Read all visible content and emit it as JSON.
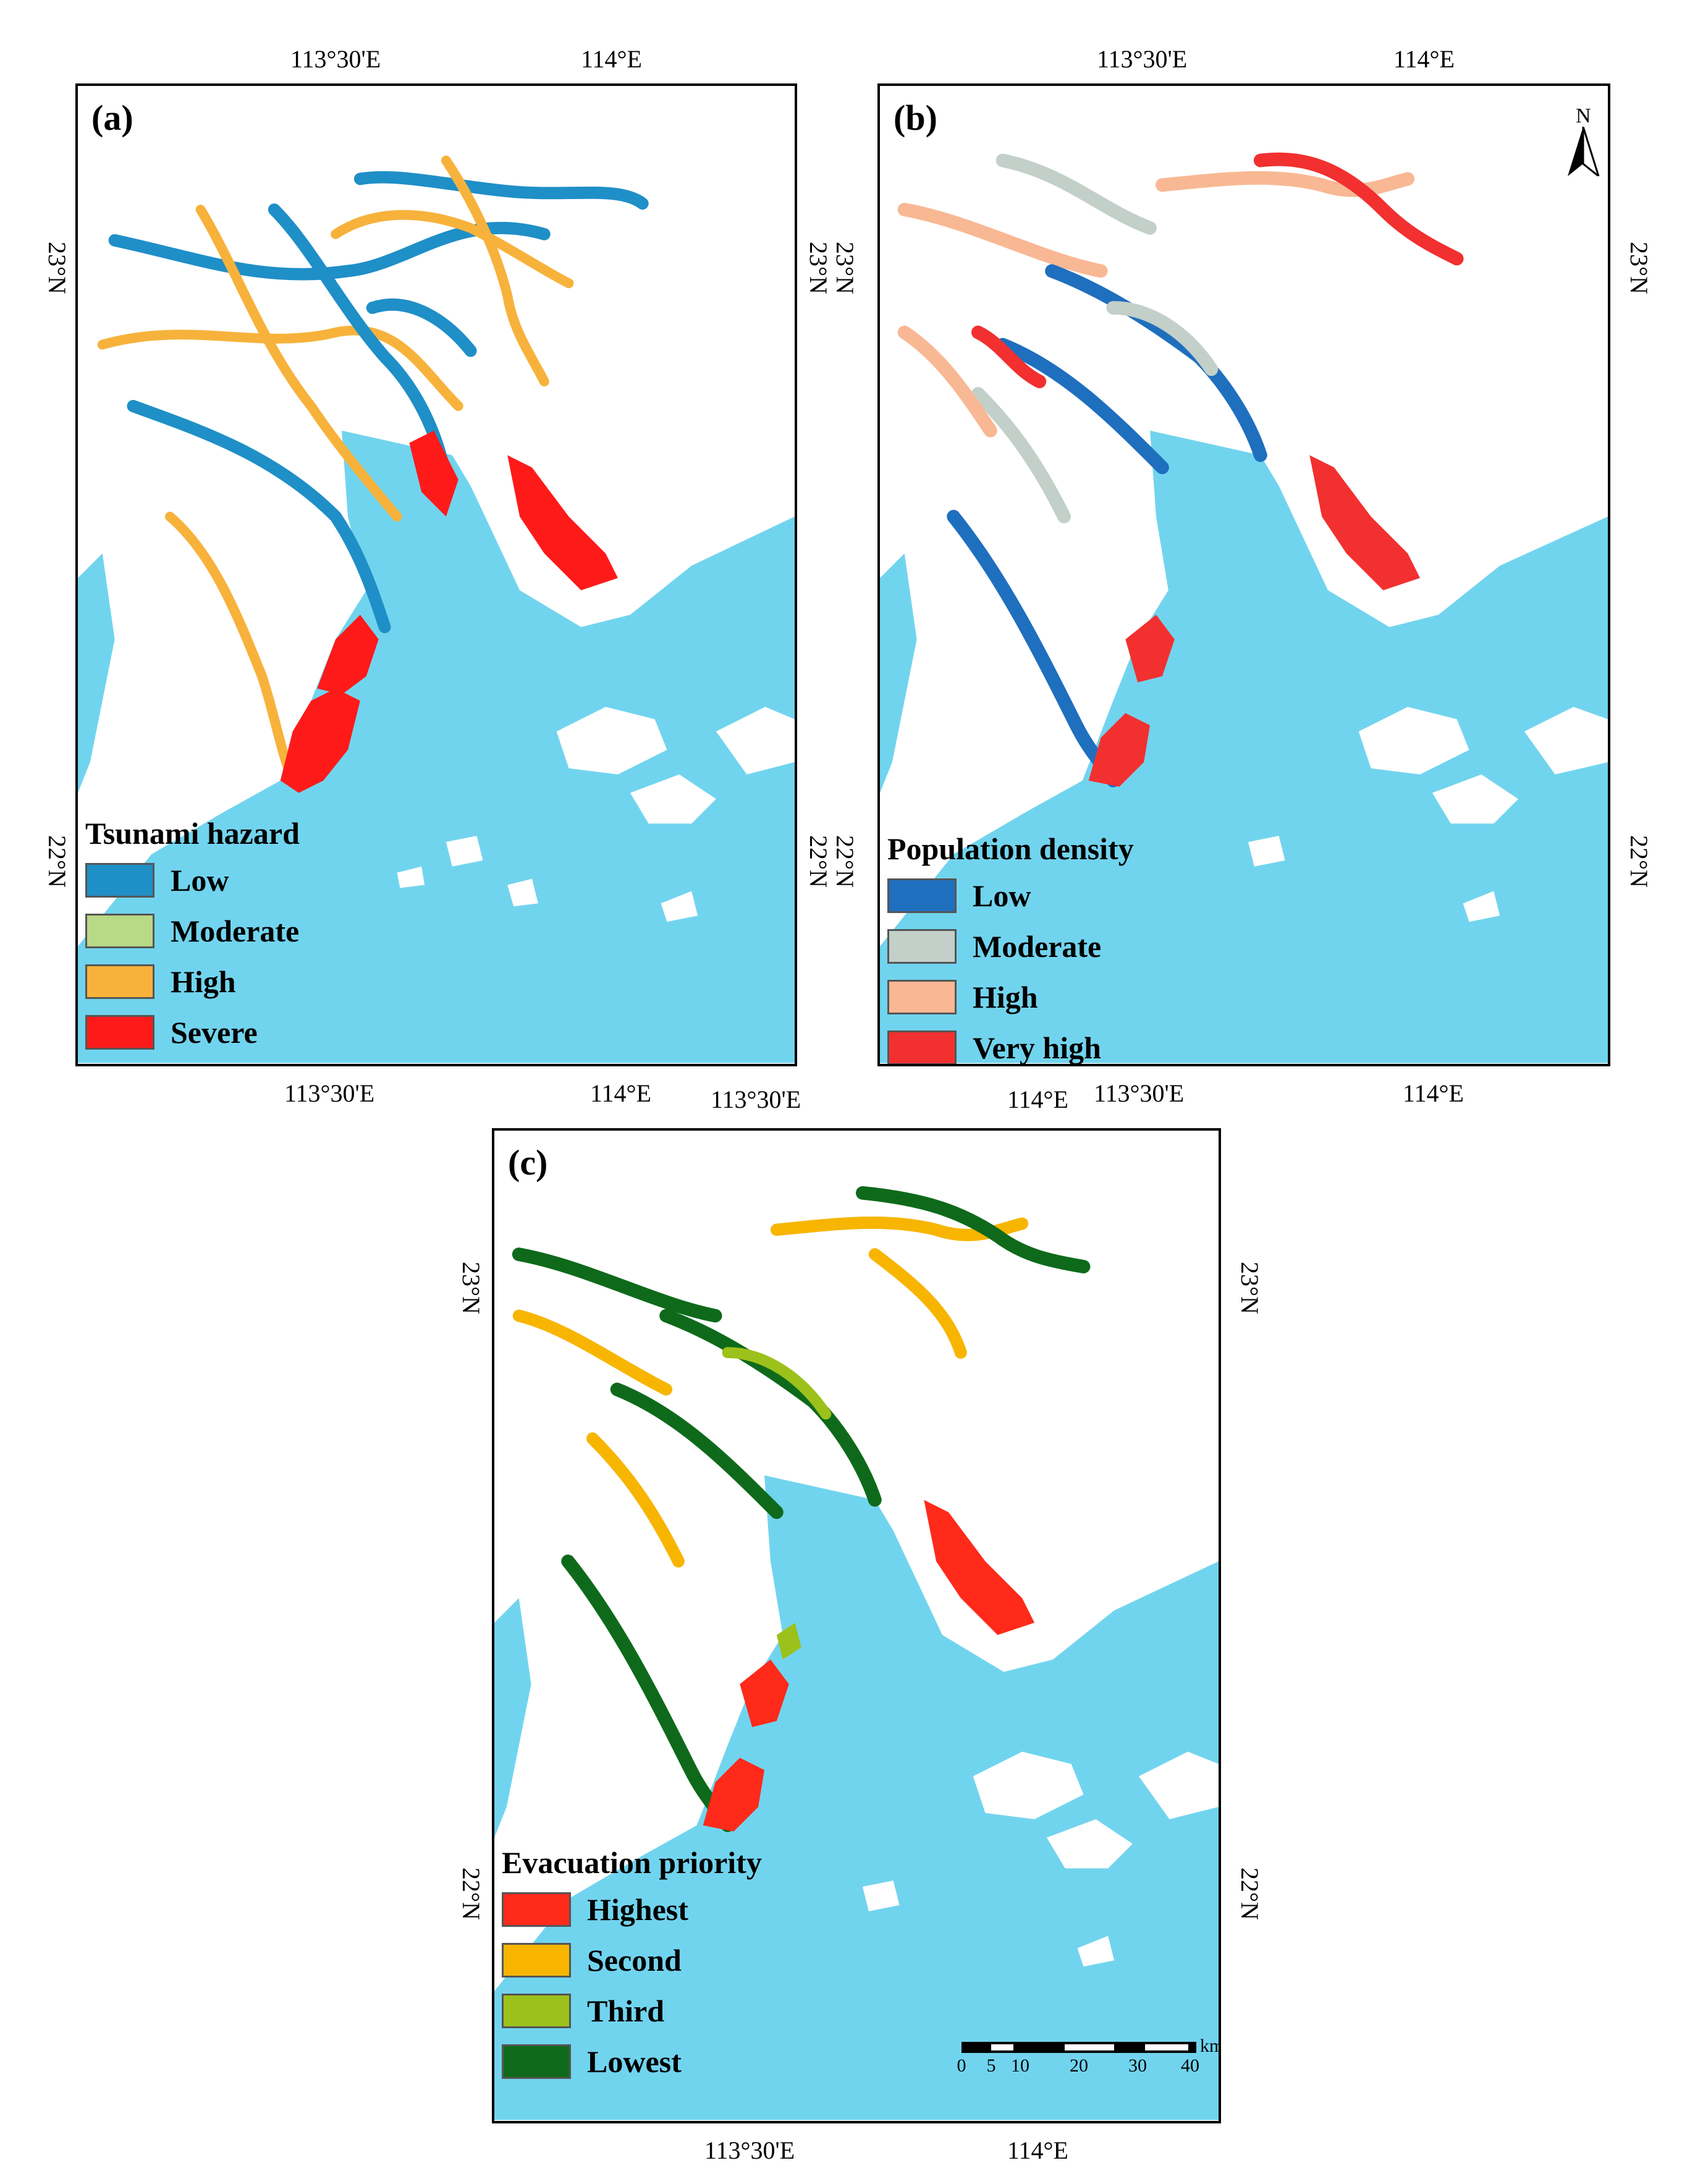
{
  "colors": {
    "water": "#71d4ee",
    "land": "#ffffff",
    "river": "#71d4ee"
  },
  "panels": [
    {
      "id": "a",
      "label": "(a)",
      "legend": {
        "title": "Tsunami hazard",
        "items": [
          {
            "label": "Low",
            "color": "#1f8fc7"
          },
          {
            "label": "Moderate",
            "color": "#b8d986"
          },
          {
            "label": "High",
            "color": "#f7b23b"
          },
          {
            "label": "Severe",
            "color": "#ff1a1a"
          }
        ]
      },
      "lon_top": [
        "113°30'E",
        "114°E"
      ],
      "lon_bottom": [
        "113°30'E",
        "114°E"
      ],
      "lat_left": [
        "23°N",
        "22°N"
      ],
      "lat_right": [
        "23°N",
        "22°N"
      ]
    },
    {
      "id": "b",
      "label": "(b)",
      "legend": {
        "title": "Population density",
        "items": [
          {
            "label": "Low",
            "color": "#1f6fbf"
          },
          {
            "label": "Moderate",
            "color": "#c3cfc9"
          },
          {
            "label": "High",
            "color": "#f9b894"
          },
          {
            "label": "Very high",
            "color": "#f23030"
          }
        ]
      },
      "lon_top": [
        "113°30'E",
        "114°E"
      ],
      "lon_bottom": [
        "113°30'E",
        "114°E"
      ],
      "lat_left": [
        "23°N",
        "22°N"
      ],
      "lat_right": [
        "23°N",
        "22°N"
      ],
      "north_label": "N"
    },
    {
      "id": "c",
      "label": "(c)",
      "legend": {
        "title": "Evacuation priority",
        "items": [
          {
            "label": "Highest",
            "color": "#ff2a1a"
          },
          {
            "label": "Second",
            "color": "#f7b500"
          },
          {
            "label": "Third",
            "color": "#9cc11a"
          },
          {
            "label": "Lowest",
            "color": "#0e6a1a"
          }
        ]
      },
      "lon_top": [
        "113°30'E",
        "114°E"
      ],
      "lon_bottom": [
        "113°30'E",
        "114°E"
      ],
      "lat_left": [
        "23°N",
        "22°N"
      ],
      "lat_right": [
        "23°N",
        "22°N"
      ],
      "scale": {
        "unit": "km",
        "ticks": [
          "0",
          "5",
          "10",
          "20",
          "30",
          "40"
        ]
      }
    }
  ]
}
